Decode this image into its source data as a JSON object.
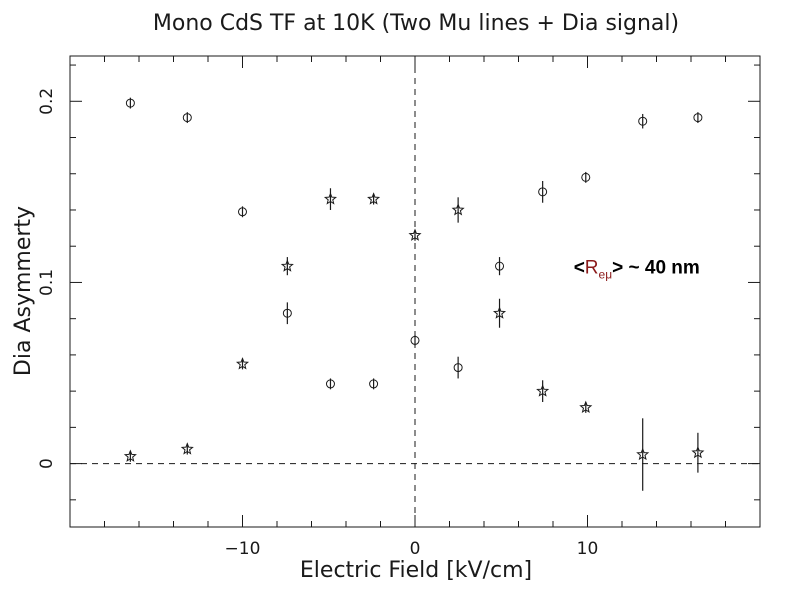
{
  "chart_data": {
    "type": "scatter",
    "title": "Mono CdS TF at 10K (Two Mu lines + Dia signal)",
    "xlabel": "Electric Field [kV/cm]",
    "ylabel": "Dia Asymmerty",
    "xlim": [
      -20,
      20
    ],
    "ylim": [
      -0.035,
      0.225
    ],
    "xticks": [
      -10,
      0,
      10
    ],
    "xtick_labels": [
      "−10",
      "0",
      "10"
    ],
    "yticks": [
      0,
      0.1,
      0.2
    ],
    "ytick_labels": [
      "0",
      "0.1",
      "0.2"
    ],
    "grid": false,
    "reference_lines": [
      {
        "orientation": "vertical",
        "value": 0,
        "style": "dashed"
      },
      {
        "orientation": "horizontal",
        "value": 0,
        "style": "dashed"
      }
    ],
    "series": [
      {
        "marker": "circle",
        "points": [
          {
            "x": -16.5,
            "y": 0.199,
            "err": 0.003
          },
          {
            "x": -13.2,
            "y": 0.191,
            "err": 0.003
          },
          {
            "x": -10.0,
            "y": 0.139,
            "err": 0.003
          },
          {
            "x": -7.4,
            "y": 0.083,
            "err": 0.006
          },
          {
            "x": -4.9,
            "y": 0.044,
            "err": 0.003
          },
          {
            "x": -2.4,
            "y": 0.044,
            "err": 0.003
          },
          {
            "x": 0.0,
            "y": 0.068,
            "err": 0.003
          },
          {
            "x": 2.5,
            "y": 0.053,
            "err": 0.006
          },
          {
            "x": 4.9,
            "y": 0.109,
            "err": 0.005
          },
          {
            "x": 7.4,
            "y": 0.15,
            "err": 0.006
          },
          {
            "x": 9.9,
            "y": 0.158,
            "err": 0.003
          },
          {
            "x": 13.2,
            "y": 0.189,
            "err": 0.004
          },
          {
            "x": 16.4,
            "y": 0.191,
            "err": 0.003
          }
        ]
      },
      {
        "marker": "star",
        "points": [
          {
            "x": -16.5,
            "y": 0.004,
            "err": 0.003
          },
          {
            "x": -13.2,
            "y": 0.008,
            "err": 0.003
          },
          {
            "x": -10.0,
            "y": 0.055,
            "err": 0.003
          },
          {
            "x": -7.4,
            "y": 0.109,
            "err": 0.005
          },
          {
            "x": -4.9,
            "y": 0.146,
            "err": 0.006
          },
          {
            "x": -2.4,
            "y": 0.146,
            "err": 0.003
          },
          {
            "x": 0.0,
            "y": 0.126,
            "err": 0.003
          },
          {
            "x": 2.5,
            "y": 0.14,
            "err": 0.007
          },
          {
            "x": 4.9,
            "y": 0.083,
            "err": 0.008
          },
          {
            "x": 7.4,
            "y": 0.04,
            "err": 0.006
          },
          {
            "x": 9.9,
            "y": 0.031,
            "err": 0.003
          },
          {
            "x": 13.2,
            "y": 0.005,
            "err": 0.02
          },
          {
            "x": 16.4,
            "y": 0.006,
            "err": 0.011
          }
        ]
      }
    ],
    "annotation": {
      "x": 9.2,
      "y": 0.105,
      "open": "<",
      "symbol": "R",
      "subscript": "eμ",
      "close": ">",
      "suffix": " ~ 40 nm",
      "color": "#000000",
      "symbol_color": "#8b1a1a"
    },
    "colors": {
      "ink": "#1a1a1a",
      "background": "#ffffff"
    }
  }
}
